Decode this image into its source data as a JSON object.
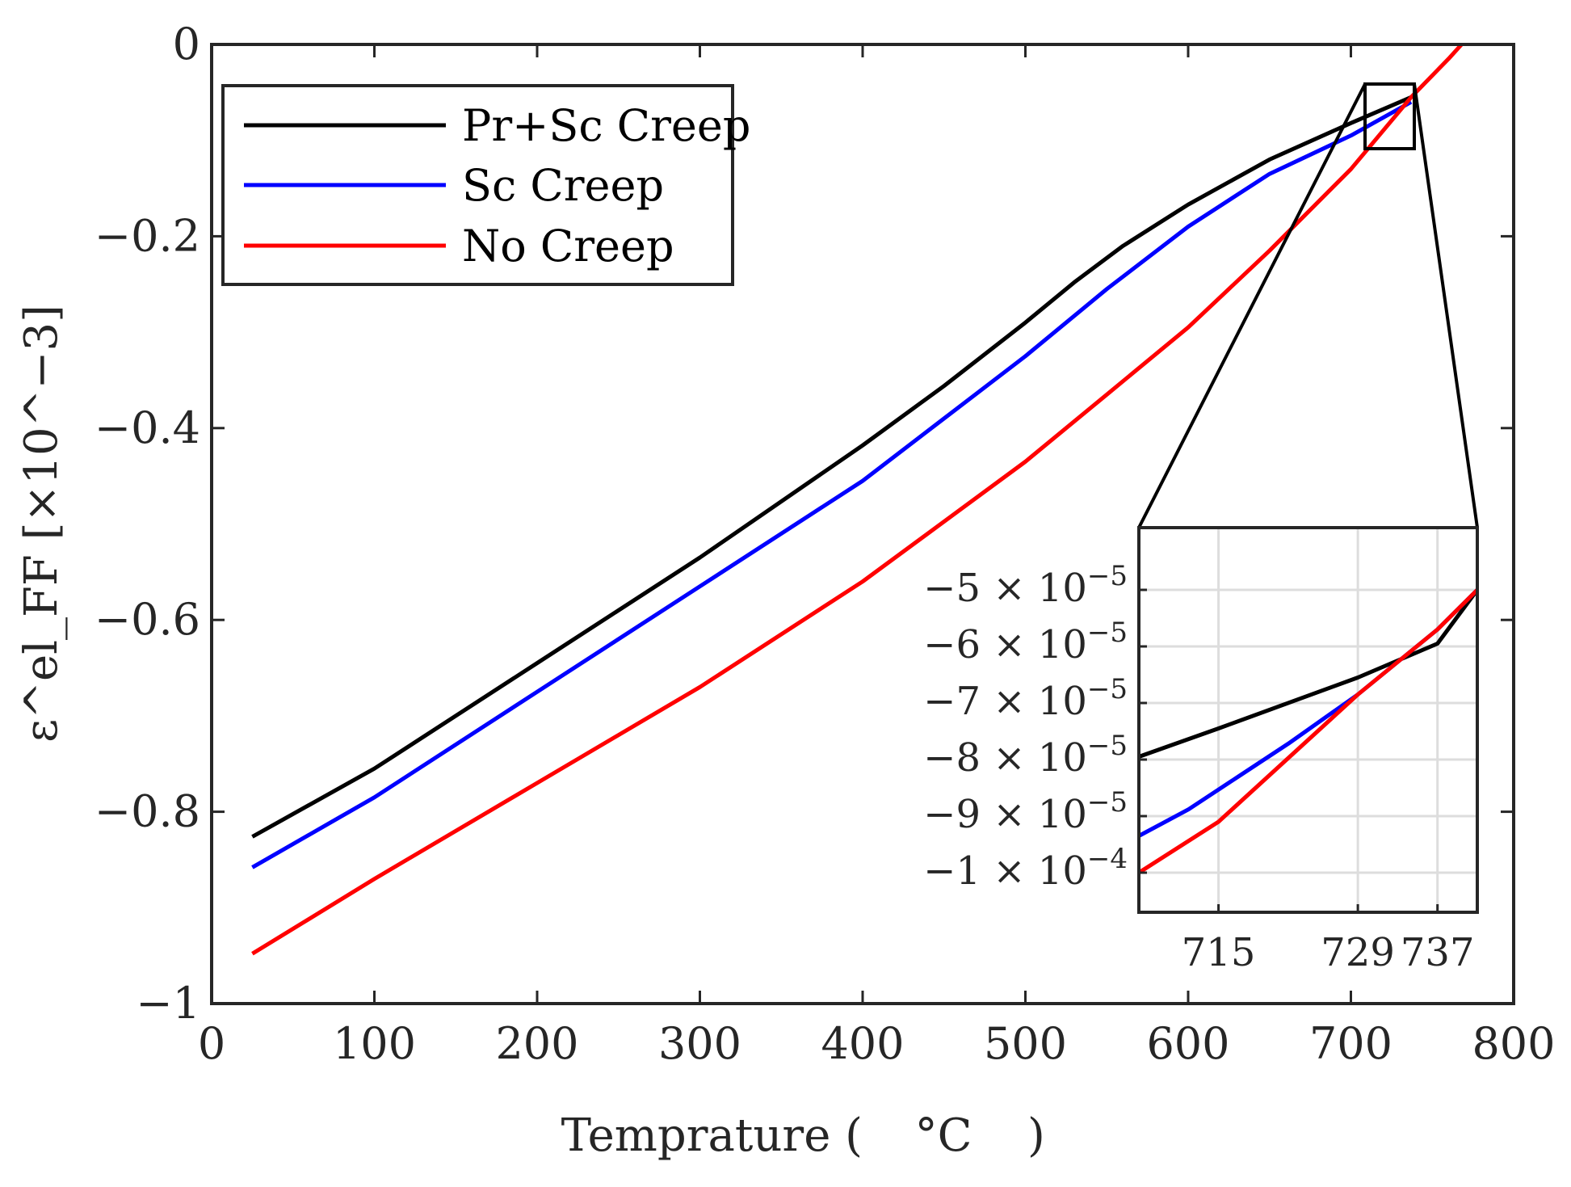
{
  "chart_data": [
    {
      "type": "line",
      "title": "",
      "xlabel": "Temprature (",
      "xlabel_unit": "°C",
      "xlabel_close": ")",
      "ylabel": "ε^el_FF [×10^−3]",
      "xlim": [
        0,
        800
      ],
      "ylim": [
        -1,
        0
      ],
      "xticks": [
        0,
        100,
        200,
        300,
        400,
        500,
        600,
        700,
        800
      ],
      "xtick_labels": [
        "0",
        "100",
        "200",
        "300",
        "400",
        "500",
        "600",
        "700",
        "800"
      ],
      "yticks": [
        0,
        -0.2,
        -0.4,
        -0.6,
        -0.8,
        -1
      ],
      "ytick_labels": [
        "0",
        "−0.2",
        "−0.4",
        "−0.6",
        "−0.8",
        "−1"
      ],
      "grid": false,
      "legend_position": "top-left",
      "series": [
        {
          "name": "Pr+Sc Creep",
          "color": "#000000",
          "x": [
            25,
            100,
            200,
            300,
            400,
            450,
            500,
            530,
            560,
            600,
            650,
            700,
            737
          ],
          "y": [
            -0.826,
            -0.755,
            -0.645,
            -0.535,
            -0.418,
            -0.356,
            -0.29,
            -0.248,
            -0.21,
            -0.167,
            -0.12,
            -0.082,
            -0.055
          ]
        },
        {
          "name": "Sc Creep",
          "color": "#0000ff",
          "x": [
            25,
            100,
            200,
            300,
            400,
            450,
            500,
            550,
            600,
            650,
            700,
            737
          ],
          "y": [
            -0.858,
            -0.785,
            -0.675,
            -0.565,
            -0.455,
            -0.39,
            -0.325,
            -0.255,
            -0.19,
            -0.135,
            -0.095,
            -0.06
          ]
        },
        {
          "name": "No Creep",
          "color": "#ff0000",
          "x": [
            25,
            100,
            200,
            300,
            400,
            500,
            550,
            600,
            650,
            700,
            737,
            760,
            768
          ],
          "y": [
            -0.948,
            -0.87,
            -0.77,
            -0.67,
            -0.56,
            -0.435,
            -0.365,
            -0.295,
            -0.215,
            -0.13,
            -0.055,
            -0.015,
            0
          ]
        }
      ]
    },
    {
      "type": "line",
      "title": "",
      "xlim": [
        707,
        741
      ],
      "ylim": [
        -0.000107,
        -3.9e-05
      ],
      "xticks": [
        715,
        729,
        737
      ],
      "xtick_labels": [
        "715",
        "729",
        "737"
      ],
      "yticks": [
        -5e-05,
        -6e-05,
        -7e-05,
        -8e-05,
        -9e-05,
        -0.0001
      ],
      "ytick_labels": [
        {
          "m": "−5 × 10",
          "e": "−5"
        },
        {
          "m": "−6 × 10",
          "e": "−5"
        },
        {
          "m": "−7 × 10",
          "e": "−5"
        },
        {
          "m": "−8 × 10",
          "e": "−5"
        },
        {
          "m": "−9 × 10",
          "e": "−5"
        },
        {
          "m": "−1 × 10",
          "e": "−4"
        }
      ],
      "grid": true,
      "series": [
        {
          "name": "Pr+Sc Creep",
          "color": "#000000",
          "x": [
            707,
            715,
            729,
            737,
            741
          ],
          "y": [
            -7.95e-05,
            -7.45e-05,
            -6.55e-05,
            -5.95e-05,
            -5e-05
          ]
        },
        {
          "name": "Sc Creep",
          "color": "#0000ff",
          "x": [
            707,
            712,
            717,
            722,
            729,
            737,
            741
          ],
          "y": [
            -9.35e-05,
            -8.88e-05,
            -8.3e-05,
            -7.72e-05,
            -6.85e-05,
            -5.7e-05,
            -5e-05
          ]
        },
        {
          "name": "No Creep",
          "color": "#ff0000",
          "x": [
            707,
            715,
            729,
            737,
            741
          ],
          "y": [
            -0.0001,
            -9.1e-05,
            -6.85e-05,
            -5.7e-05,
            -5e-05
          ]
        }
      ]
    }
  ]
}
